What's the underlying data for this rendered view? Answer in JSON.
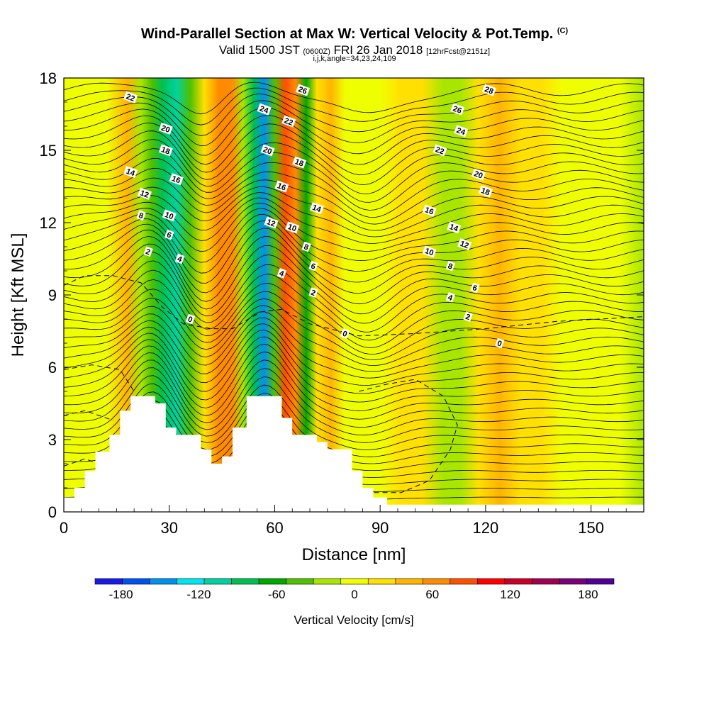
{
  "chart_data": {
    "type": "heatmap",
    "title": "Wind-Parallel Section at Max W: Vertical Velocity & Pot.Temp.",
    "title_mark": "(C)",
    "subtitle": {
      "valid_prefix": "Valid 1500 JST",
      "utc": "(0600Z)",
      "date": "FRI 26 Jan 2018",
      "fcst": "[12hrFcst@2151z]"
    },
    "indices": "i,j,k,angle=34,23,24,109",
    "xlabel": "Distance [nm]",
    "ylabel": "Height [Kft MSL]",
    "xlim": [
      0,
      165
    ],
    "ylim": [
      0,
      18
    ],
    "x_ticks": [
      0,
      30,
      60,
      90,
      120,
      150
    ],
    "y_ticks": [
      0,
      3,
      6,
      9,
      12,
      15,
      18
    ],
    "colorbar": {
      "label": "Vertical Velocity [cm/s]",
      "range": [
        -200,
        200
      ],
      "ticks": [
        -180,
        -120,
        -60,
        0,
        60,
        120,
        180
      ],
      "tick_labels": [
        "-180",
        "-120",
        "-60",
        "0",
        "60",
        "120",
        "180"
      ],
      "colors": [
        "#1a1ae6",
        "#0050f0",
        "#0090f0",
        "#00e6f0",
        "#00d2a0",
        "#00c050",
        "#00a800",
        "#50c000",
        "#a8e600",
        "#f0ff00",
        "#ffe000",
        "#ffb400",
        "#ff8c00",
        "#ff5000",
        "#ff0000",
        "#c80028",
        "#a00050",
        "#780078",
        "#500096"
      ]
    },
    "velocity_bands": [
      {
        "x": 0,
        "w": 2
      },
      {
        "x": 5,
        "w": 8
      },
      {
        "x": 12,
        "w": 2
      },
      {
        "x": 18,
        "w": 35
      },
      {
        "x": 22,
        "w": -15
      },
      {
        "x": 25,
        "w": -45
      },
      {
        "x": 28,
        "w": -75
      },
      {
        "x": 32,
        "w": -110
      },
      {
        "x": 36,
        "w": -40
      },
      {
        "x": 40,
        "w": 25
      },
      {
        "x": 44,
        "w": 55
      },
      {
        "x": 48,
        "w": 65
      },
      {
        "x": 51,
        "w": -20
      },
      {
        "x": 54,
        "w": -80
      },
      {
        "x": 57,
        "w": -140
      },
      {
        "x": 60,
        "w": -40
      },
      {
        "x": 63,
        "w": 75
      },
      {
        "x": 66,
        "w": 55
      },
      {
        "x": 69,
        "w": -60
      },
      {
        "x": 72,
        "w": 20
      },
      {
        "x": 76,
        "w": 35
      },
      {
        "x": 80,
        "w": 10
      },
      {
        "x": 85,
        "w": -10
      },
      {
        "x": 90,
        "w": 10
      },
      {
        "x": 96,
        "w": 20
      },
      {
        "x": 102,
        "w": 15
      },
      {
        "x": 108,
        "w": -15
      },
      {
        "x": 113,
        "w": -30
      },
      {
        "x": 118,
        "w": 20
      },
      {
        "x": 124,
        "w": 35
      },
      {
        "x": 130,
        "w": 30
      },
      {
        "x": 136,
        "w": 15
      },
      {
        "x": 142,
        "w": -5
      },
      {
        "x": 150,
        "w": 10
      },
      {
        "x": 158,
        "w": 5
      },
      {
        "x": 165,
        "w": -20
      }
    ],
    "pot_temp_labels": [
      {
        "x": 19,
        "y": 17.2,
        "v": "22"
      },
      {
        "x": 29,
        "y": 15.9,
        "v": "20"
      },
      {
        "x": 29,
        "y": 15.0,
        "v": "18"
      },
      {
        "x": 19,
        "y": 14.1,
        "v": "14"
      },
      {
        "x": 32,
        "y": 13.8,
        "v": "16"
      },
      {
        "x": 23,
        "y": 13.2,
        "v": "12"
      },
      {
        "x": 22,
        "y": 12.3,
        "v": "8"
      },
      {
        "x": 30,
        "y": 12.3,
        "v": "10"
      },
      {
        "x": 30,
        "y": 11.5,
        "v": "6"
      },
      {
        "x": 24,
        "y": 10.8,
        "v": "2"
      },
      {
        "x": 33,
        "y": 10.5,
        "v": "4"
      },
      {
        "x": 36,
        "y": 8.0,
        "v": "0"
      },
      {
        "x": 68,
        "y": 17.5,
        "v": "26"
      },
      {
        "x": 57,
        "y": 16.7,
        "v": "24"
      },
      {
        "x": 64,
        "y": 16.2,
        "v": "22"
      },
      {
        "x": 58,
        "y": 15.0,
        "v": "20"
      },
      {
        "x": 67,
        "y": 14.5,
        "v": "18"
      },
      {
        "x": 62,
        "y": 13.5,
        "v": "16"
      },
      {
        "x": 72,
        "y": 12.6,
        "v": "14"
      },
      {
        "x": 59,
        "y": 12.0,
        "v": "12"
      },
      {
        "x": 65,
        "y": 11.8,
        "v": "10"
      },
      {
        "x": 69,
        "y": 11.0,
        "v": "8"
      },
      {
        "x": 71,
        "y": 10.2,
        "v": "6"
      },
      {
        "x": 62,
        "y": 9.9,
        "v": "4"
      },
      {
        "x": 71,
        "y": 9.1,
        "v": "2"
      },
      {
        "x": 80,
        "y": 7.4,
        "v": "0"
      },
      {
        "x": 121,
        "y": 17.5,
        "v": "28"
      },
      {
        "x": 112,
        "y": 16.7,
        "v": "26"
      },
      {
        "x": 113,
        "y": 15.8,
        "v": "24"
      },
      {
        "x": 107,
        "y": 15.0,
        "v": "22"
      },
      {
        "x": 118,
        "y": 14.0,
        "v": "20"
      },
      {
        "x": 120,
        "y": 13.3,
        "v": "18"
      },
      {
        "x": 104,
        "y": 12.5,
        "v": "16"
      },
      {
        "x": 111,
        "y": 11.8,
        "v": "14"
      },
      {
        "x": 114,
        "y": 11.1,
        "v": "12"
      },
      {
        "x": 104,
        "y": 10.8,
        "v": "10"
      },
      {
        "x": 110,
        "y": 10.2,
        "v": "8"
      },
      {
        "x": 117,
        "y": 9.3,
        "v": "6"
      },
      {
        "x": 110,
        "y": 8.9,
        "v": "4"
      },
      {
        "x": 115,
        "y": 8.1,
        "v": "2"
      },
      {
        "x": 124,
        "y": 7.0,
        "v": "0"
      }
    ],
    "terrain": [
      [
        0,
        0.6
      ],
      [
        3,
        0.6
      ],
      [
        3,
        1.0
      ],
      [
        6,
        1.0
      ],
      [
        6,
        1.7
      ],
      [
        9,
        1.7
      ],
      [
        9,
        2.5
      ],
      [
        13,
        2.5
      ],
      [
        13,
        3.2
      ],
      [
        16,
        3.2
      ],
      [
        16,
        4.2
      ],
      [
        19,
        4.2
      ],
      [
        19,
        4.8
      ],
      [
        26,
        4.8
      ],
      [
        26,
        4.5
      ],
      [
        29,
        4.5
      ],
      [
        29,
        3.5
      ],
      [
        32,
        3.5
      ],
      [
        32,
        3.2
      ],
      [
        39,
        3.2
      ],
      [
        39,
        2.6
      ],
      [
        42,
        2.6
      ],
      [
        42,
        2.0
      ],
      [
        45,
        2.0
      ],
      [
        45,
        2.3
      ],
      [
        48,
        2.3
      ],
      [
        48,
        3.5
      ],
      [
        52,
        3.5
      ],
      [
        52,
        4.8
      ],
      [
        62,
        4.8
      ],
      [
        62,
        3.9
      ],
      [
        65,
        3.9
      ],
      [
        65,
        3.2
      ],
      [
        72,
        3.2
      ],
      [
        72,
        2.9
      ],
      [
        75,
        2.9
      ],
      [
        75,
        2.6
      ],
      [
        82,
        2.6
      ],
      [
        82,
        1.7
      ],
      [
        85,
        1.7
      ],
      [
        85,
        1.0
      ],
      [
        88,
        1.0
      ],
      [
        88,
        0.6
      ],
      [
        92,
        0.6
      ],
      [
        92,
        0.3
      ],
      [
        165,
        0.3
      ]
    ]
  }
}
